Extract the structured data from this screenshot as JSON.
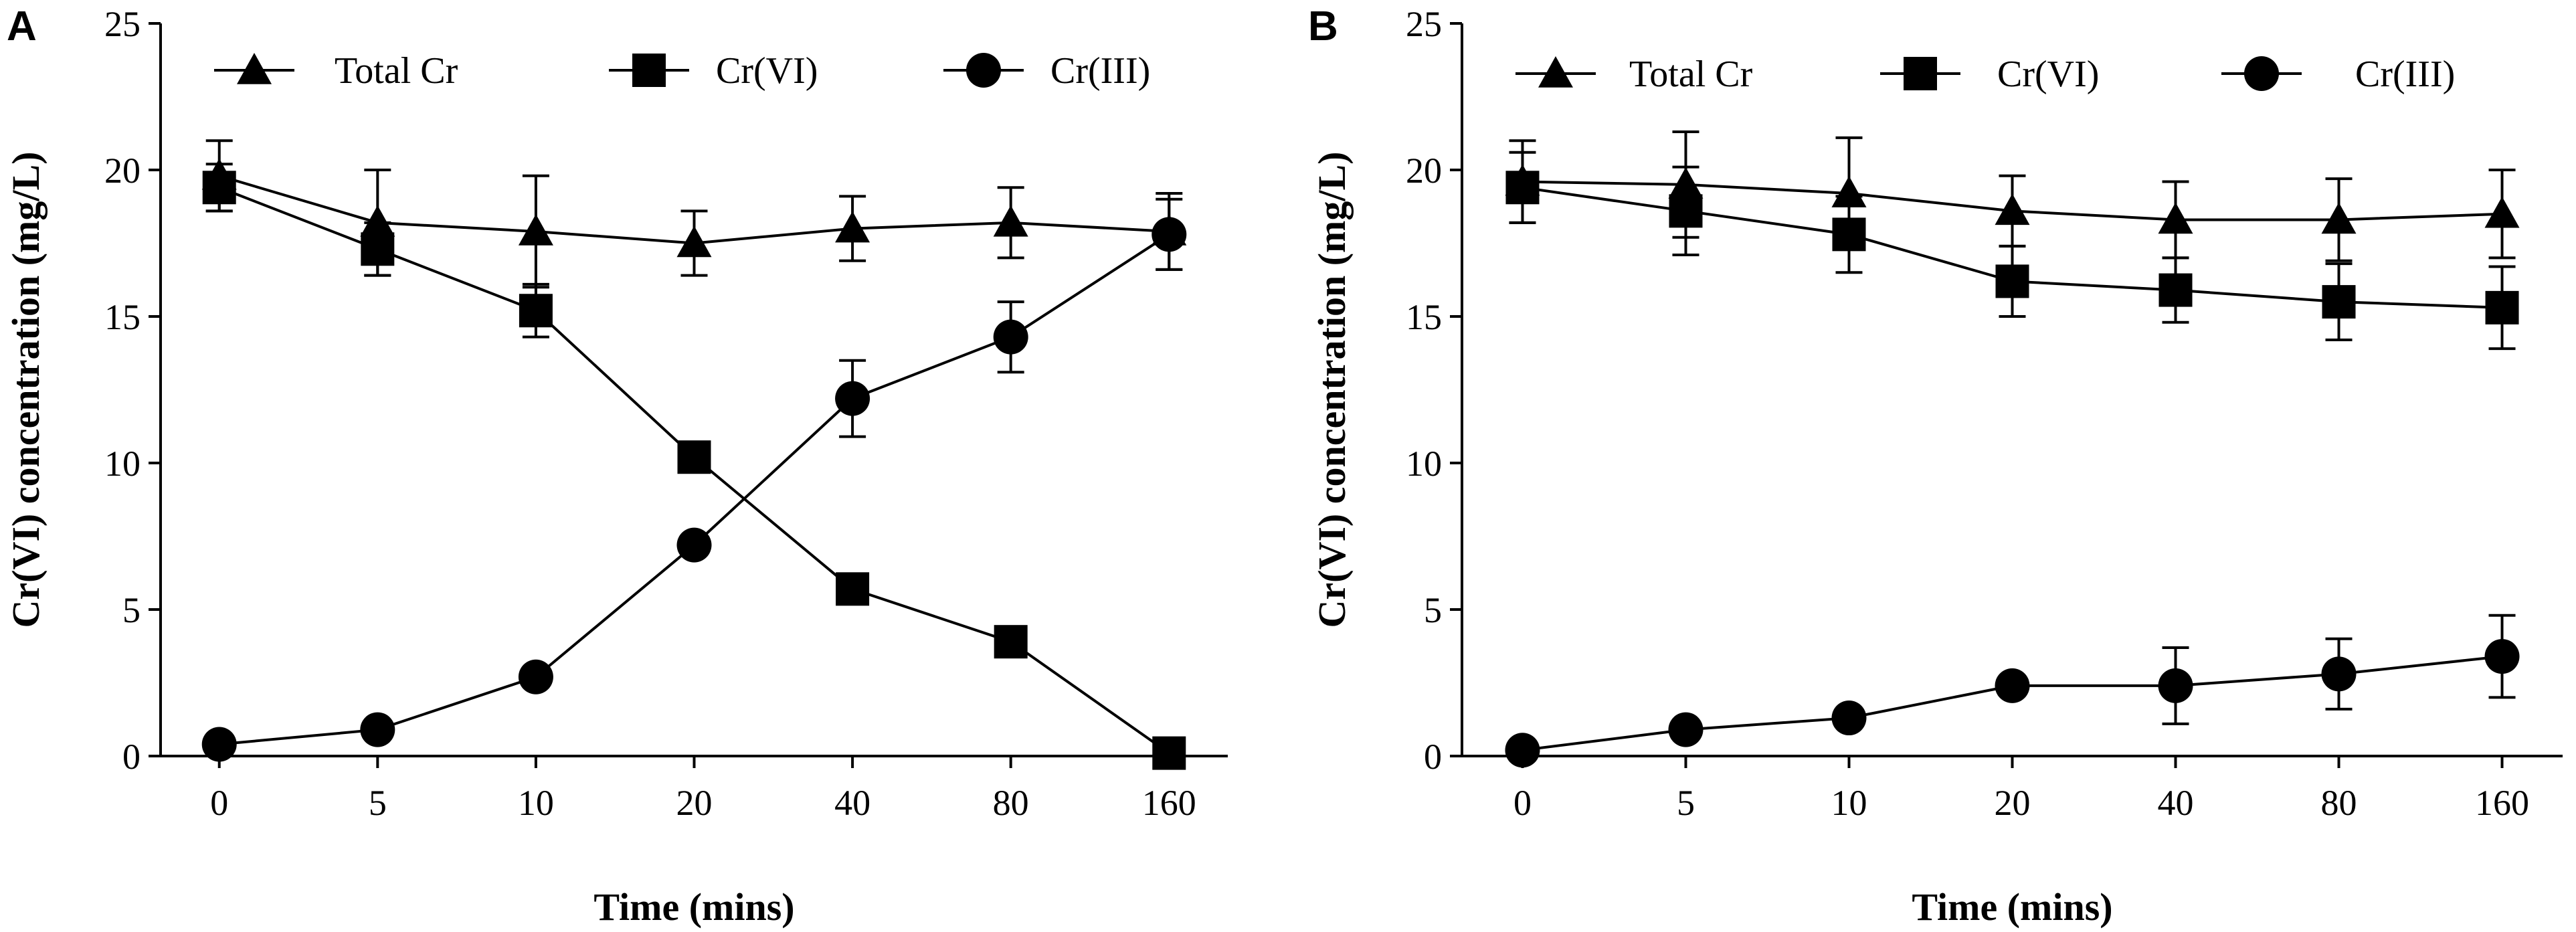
{
  "chart_data": [
    {
      "panel": "A",
      "type": "line",
      "xlabel": "Time (mins)",
      "ylabel": "Cr(VI) concentration (mg/L)",
      "ylim": [
        0,
        25
      ],
      "yticks": [
        "0",
        "5",
        "10",
        "15",
        "20",
        "25"
      ],
      "categories": [
        "0",
        "5",
        "10",
        "20",
        "40",
        "80",
        "160"
      ],
      "series": [
        {
          "name": "Total Cr",
          "marker": "triangle",
          "values": [
            19.8,
            18.2,
            17.9,
            17.5,
            18.0,
            18.2,
            17.9
          ],
          "errors": [
            1.2,
            1.8,
            1.9,
            1.1,
            1.1,
            1.2,
            1.3
          ]
        },
        {
          "name": "Cr(VI)",
          "marker": "square",
          "values": [
            19.4,
            17.3,
            15.2,
            10.2,
            5.7,
            3.9,
            0.1
          ],
          "errors": [
            0.8,
            0.9,
            0.9,
            0,
            0,
            0,
            0
          ]
        },
        {
          "name": "Cr(III)",
          "marker": "circle",
          "values": [
            0.4,
            0.9,
            2.7,
            7.2,
            12.2,
            14.3,
            17.8
          ],
          "errors": [
            0,
            0,
            0,
            0,
            1.3,
            1.2,
            1.2
          ]
        }
      ]
    },
    {
      "panel": "B",
      "type": "line",
      "xlabel": "Time (mins)",
      "ylabel": "Cr(VI) concentration (mg/L)",
      "ylim": [
        0,
        25
      ],
      "yticks": [
        "0",
        "5",
        "10",
        "15",
        "20",
        "25"
      ],
      "categories": [
        "0",
        "5",
        "10",
        "20",
        "40",
        "80",
        "160"
      ],
      "series": [
        {
          "name": "Total Cr",
          "marker": "triangle",
          "values": [
            19.6,
            19.5,
            19.2,
            18.6,
            18.3,
            18.3,
            18.5
          ],
          "errors": [
            1.4,
            1.8,
            1.9,
            1.2,
            1.3,
            1.4,
            1.5
          ]
        },
        {
          "name": "Cr(VI)",
          "marker": "square",
          "values": [
            19.4,
            18.6,
            17.8,
            16.2,
            15.9,
            15.5,
            15.3
          ],
          "errors": [
            1.2,
            1.5,
            1.3,
            1.2,
            1.1,
            1.3,
            1.4
          ]
        },
        {
          "name": "Cr(III)",
          "marker": "circle",
          "values": [
            0.2,
            0.9,
            1.3,
            2.4,
            2.4,
            2.8,
            3.4
          ],
          "errors": [
            0,
            0,
            0,
            0,
            1.3,
            1.2,
            1.4
          ]
        }
      ]
    }
  ]
}
